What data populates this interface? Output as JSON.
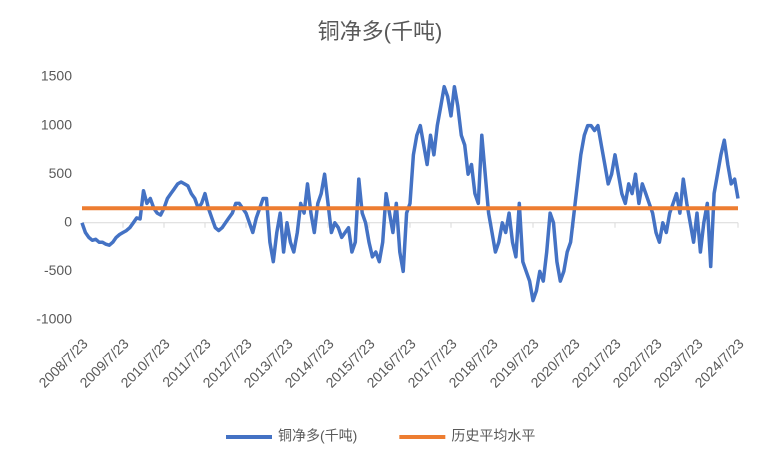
{
  "chart_data": {
    "type": "line",
    "title": "铜净多(千吨)",
    "categories": [
      "2008/7/23",
      null,
      null,
      null,
      null,
      null,
      null,
      null,
      null,
      null,
      null,
      null,
      "2009/7/23",
      null,
      null,
      null,
      null,
      null,
      null,
      null,
      null,
      null,
      null,
      null,
      "2010/7/23",
      null,
      null,
      null,
      null,
      null,
      null,
      null,
      null,
      null,
      null,
      null,
      "2011/7/23",
      null,
      null,
      null,
      null,
      null,
      null,
      null,
      null,
      null,
      null,
      null,
      "2012/7/23",
      null,
      null,
      null,
      null,
      null,
      null,
      null,
      null,
      null,
      null,
      null,
      "2013/7/23",
      null,
      null,
      null,
      null,
      null,
      null,
      null,
      null,
      null,
      null,
      null,
      "2014/7/23",
      null,
      null,
      null,
      null,
      null,
      null,
      null,
      null,
      null,
      null,
      null,
      "2015/7/23",
      null,
      null,
      null,
      null,
      null,
      null,
      null,
      null,
      null,
      null,
      null,
      "2016/7/23",
      null,
      null,
      null,
      null,
      null,
      null,
      null,
      null,
      null,
      null,
      null,
      "2017/7/23",
      null,
      null,
      null,
      null,
      null,
      null,
      null,
      null,
      null,
      null,
      null,
      "2018/7/23",
      null,
      null,
      null,
      null,
      null,
      null,
      null,
      null,
      null,
      null,
      null,
      "2019/7/23",
      null,
      null,
      null,
      null,
      null,
      null,
      null,
      null,
      null,
      null,
      null,
      "2020/7/23",
      null,
      null,
      null,
      null,
      null,
      null,
      null,
      null,
      null,
      null,
      null,
      "2021/7/23",
      null,
      null,
      null,
      null,
      null,
      null,
      null,
      null,
      null,
      null,
      null,
      "2022/7/23",
      null,
      null,
      null,
      null,
      null,
      null,
      null,
      null,
      null,
      null,
      null,
      "2023/7/23",
      null,
      null,
      null,
      null,
      null,
      null,
      null,
      null,
      null,
      null,
      null,
      "2024/7/23"
    ],
    "series": [
      {
        "name": "铜净多(千吨)",
        "color": "#4472c4",
        "values": [
          0,
          -100,
          -150,
          -180,
          -170,
          -200,
          -200,
          -220,
          -230,
          -200,
          -150,
          -120,
          -100,
          -80,
          -50,
          0,
          50,
          40,
          330,
          200,
          250,
          150,
          100,
          80,
          150,
          250,
          300,
          350,
          400,
          420,
          400,
          380,
          300,
          250,
          150,
          200,
          300,
          150,
          50,
          -50,
          -80,
          -50,
          0,
          50,
          100,
          200,
          200,
          150,
          100,
          0,
          -100,
          50,
          150,
          250,
          250,
          -200,
          -400,
          -100,
          100,
          -300,
          0,
          -200,
          -300,
          -100,
          200,
          100,
          400,
          100,
          -100,
          200,
          300,
          500,
          200,
          -100,
          0,
          -50,
          -150,
          -100,
          -50,
          -300,
          -200,
          450,
          100,
          0,
          -200,
          -350,
          -300,
          -400,
          -200,
          300,
          100,
          -100,
          200,
          -300,
          -500,
          100,
          200,
          700,
          900,
          1000,
          800,
          600,
          900,
          700,
          1000,
          1200,
          1400,
          1300,
          1100,
          1400,
          1200,
          900,
          800,
          500,
          600,
          300,
          200,
          900,
          500,
          100,
          -100,
          -300,
          -200,
          0,
          -100,
          100,
          -200,
          -350,
          200,
          -400,
          -500,
          -600,
          -800,
          -700,
          -500,
          -600,
          -300,
          100,
          0,
          -400,
          -600,
          -500,
          -300,
          -200,
          100,
          400,
          700,
          900,
          1000,
          1000,
          950,
          1000,
          800,
          600,
          400,
          500,
          700,
          500,
          300,
          200,
          400,
          300,
          500,
          200,
          400,
          300,
          200,
          100,
          -100,
          -200,
          0,
          -100,
          100,
          200,
          300,
          100,
          450,
          200,
          0,
          -200,
          100,
          -300,
          0,
          200,
          -450,
          300,
          500,
          700,
          850,
          600,
          400,
          450,
          250
        ]
      }
    ],
    "reference_lines": [
      {
        "name": "历史平均水平",
        "color": "#ed7d31",
        "value": 150
      }
    ],
    "ylim": [
      -1000,
      1500
    ],
    "yticks": [
      -1000,
      -500,
      0,
      500,
      1000,
      1500
    ],
    "grid": false,
    "legend": "bottom"
  }
}
